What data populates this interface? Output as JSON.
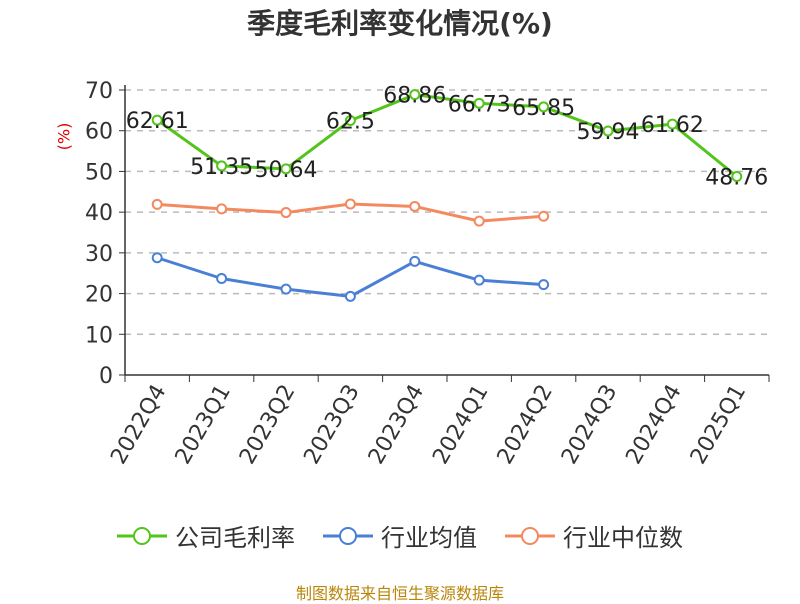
{
  "chart_data": {
    "type": "line",
    "title": "季度毛利率变化情况(%)",
    "ylabel": "(%)",
    "categories": [
      "2022Q4",
      "2023Q1",
      "2023Q2",
      "2023Q3",
      "2023Q4",
      "2024Q1",
      "2024Q2",
      "2024Q3",
      "2024Q4",
      "2025Q1"
    ],
    "ylim": [
      0,
      70
    ],
    "yticks": [
      0,
      10,
      20,
      30,
      40,
      50,
      60,
      70
    ],
    "grid": true,
    "legend_position": "bottom",
    "series": [
      {
        "name": "公司毛利率",
        "color": "#52c41a",
        "values": [
          62.61,
          51.35,
          50.64,
          62.5,
          68.86,
          66.73,
          65.85,
          59.94,
          61.62,
          48.76
        ],
        "labels": [
          "62.61",
          "51.35",
          "50.64",
          "62.5",
          "68.86",
          "66.73",
          "65.85",
          "59.94",
          "61.62",
          "48.76"
        ]
      },
      {
        "name": "行业均值",
        "color": "#4a7fd6",
        "values": [
          28.8,
          23.7,
          21.1,
          19.3,
          27.9,
          23.3,
          22.2,
          null,
          null,
          null
        ]
      },
      {
        "name": "行业中位数",
        "color": "#f4895f",
        "values": [
          41.9,
          40.8,
          39.9,
          42.0,
          41.4,
          37.8,
          39.0,
          null,
          null,
          null
        ]
      }
    ]
  },
  "source": "制图数据来自恒生聚源数据库"
}
